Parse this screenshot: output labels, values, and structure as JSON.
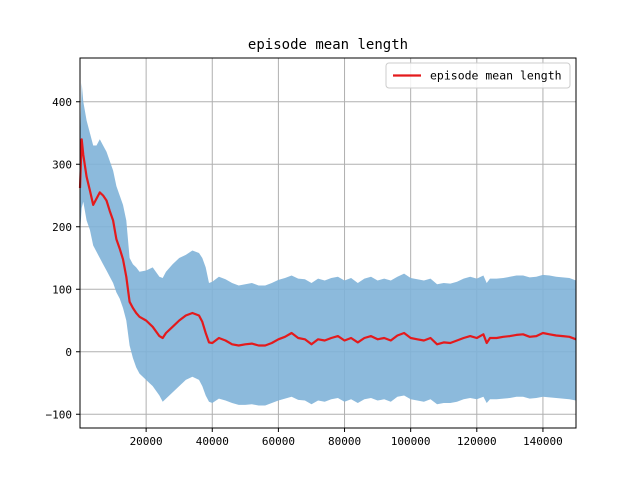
{
  "chart_data": {
    "type": "line",
    "title": "episode mean length",
    "xlabel": "",
    "ylabel": "",
    "xlim": [
      0,
      150000
    ],
    "ylim": [
      -122,
      470
    ],
    "xticks": [
      20000,
      40000,
      60000,
      80000,
      100000,
      120000,
      140000
    ],
    "yticks": [
      -100,
      0,
      100,
      200,
      300,
      400
    ],
    "grid": true,
    "legend_position": "top-right",
    "colors": {
      "line": "#e41a1c",
      "band": "#7fb2d8"
    },
    "series": [
      {
        "name": "episode mean length",
        "x": [
          0,
          500,
          1000,
          2000,
          3000,
          4000,
          5000,
          6000,
          7000,
          8000,
          9000,
          10000,
          11000,
          12000,
          13000,
          14000,
          15000,
          16000,
          17000,
          18000,
          20000,
          22000,
          24000,
          25000,
          26000,
          28000,
          30000,
          32000,
          34000,
          36000,
          37000,
          38000,
          39000,
          40000,
          42000,
          44000,
          46000,
          48000,
          50000,
          52000,
          54000,
          56000,
          58000,
          60000,
          62000,
          64000,
          66000,
          68000,
          70000,
          72000,
          74000,
          76000,
          78000,
          80000,
          82000,
          84000,
          86000,
          88000,
          90000,
          92000,
          94000,
          96000,
          98000,
          100000,
          102000,
          104000,
          106000,
          108000,
          110000,
          112000,
          114000,
          116000,
          118000,
          120000,
          122000,
          123000,
          124000,
          126000,
          128000,
          130000,
          132000,
          134000,
          136000,
          138000,
          140000,
          142000,
          144000,
          146000,
          148000,
          150000
        ],
        "y": [
          262,
          340,
          315,
          280,
          258,
          235,
          245,
          255,
          250,
          242,
          225,
          210,
          180,
          165,
          148,
          120,
          80,
          70,
          62,
          56,
          50,
          40,
          25,
          22,
          30,
          40,
          50,
          58,
          62,
          58,
          48,
          30,
          15,
          14,
          22,
          18,
          12,
          10,
          12,
          13,
          10,
          10,
          14,
          20,
          24,
          30,
          22,
          20,
          12,
          20,
          18,
          22,
          25,
          18,
          22,
          15,
          22,
          25,
          20,
          22,
          18,
          26,
          30,
          22,
          20,
          18,
          22,
          12,
          15,
          14,
          18,
          22,
          25,
          22,
          28,
          14,
          22,
          22,
          24,
          25,
          27,
          28,
          24,
          25,
          30,
          28,
          26,
          25,
          24,
          20
        ],
        "lower": [
          190,
          230,
          240,
          210,
          195,
          170,
          160,
          150,
          140,
          130,
          120,
          110,
          95,
          85,
          70,
          50,
          10,
          -10,
          -25,
          -35,
          -45,
          -55,
          -70,
          -80,
          -75,
          -65,
          -55,
          -45,
          -40,
          -45,
          -55,
          -70,
          -80,
          -82,
          -75,
          -78,
          -82,
          -85,
          -85,
          -84,
          -86,
          -86,
          -82,
          -78,
          -75,
          -72,
          -77,
          -78,
          -84,
          -78,
          -80,
          -76,
          -74,
          -80,
          -76,
          -82,
          -76,
          -74,
          -78,
          -76,
          -80,
          -72,
          -70,
          -76,
          -78,
          -80,
          -76,
          -84,
          -82,
          -82,
          -80,
          -76,
          -74,
          -76,
          -72,
          -82,
          -76,
          -76,
          -75,
          -74,
          -72,
          -72,
          -75,
          -74,
          -72,
          -73,
          -74,
          -75,
          -76,
          -78
        ],
        "upper": [
          330,
          430,
          400,
          370,
          350,
          330,
          330,
          340,
          330,
          320,
          305,
          290,
          265,
          250,
          235,
          210,
          150,
          140,
          135,
          128,
          130,
          135,
          120,
          118,
          128,
          140,
          150,
          155,
          162,
          158,
          150,
          135,
          110,
          112,
          120,
          116,
          110,
          106,
          108,
          110,
          106,
          106,
          110,
          115,
          118,
          122,
          117,
          116,
          110,
          117,
          114,
          118,
          120,
          114,
          118,
          110,
          117,
          120,
          114,
          117,
          114,
          120,
          125,
          118,
          116,
          114,
          117,
          108,
          110,
          109,
          112,
          117,
          120,
          117,
          122,
          110,
          117,
          117,
          118,
          120,
          122,
          122,
          119,
          120,
          123,
          122,
          120,
          119,
          118,
          114
        ]
      }
    ]
  }
}
